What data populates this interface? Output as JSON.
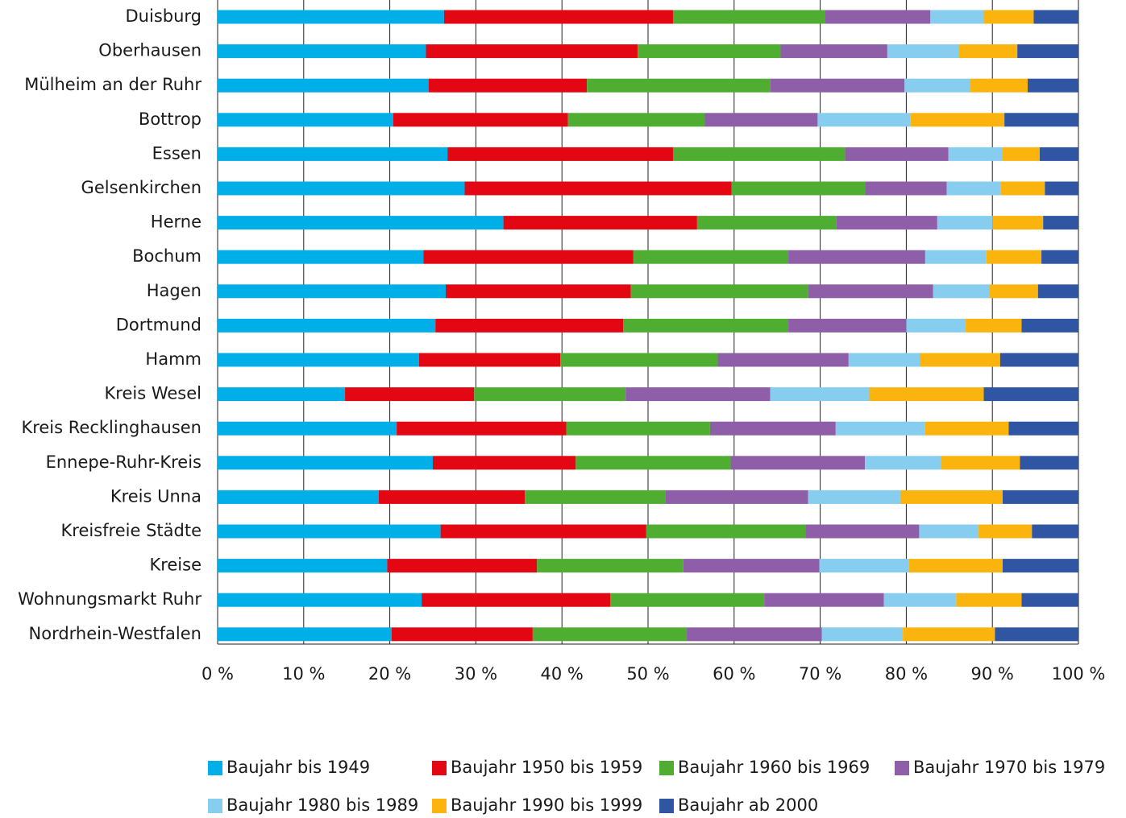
{
  "chart_data": {
    "type": "stacked_bar_horizontal",
    "categories": [
      "Duisburg",
      "Oberhausen",
      "Mülheim an der Ruhr",
      "Bottrop",
      "Essen",
      "Gelsenkirchen",
      "Herne",
      "Bochum",
      "Hagen",
      "Dortmund",
      "Hamm",
      "Kreis Wesel",
      "Kreis Recklinghausen",
      "Ennepe-Ruhr-Kreis",
      "Kreis Unna",
      "Kreisfreie Städte",
      "Kreise",
      "Wohnungsmarkt Ruhr",
      "Nordrhein-Westfalen"
    ],
    "series": [
      {
        "name": "Baujahr bis 1949",
        "color": "#00aee8",
        "values": [
          26.3,
          24.2,
          24.5,
          20.4,
          26.7,
          28.7,
          33.2,
          23.9,
          26.5,
          25.3,
          23.4,
          14.8,
          20.8,
          25.0,
          18.7,
          25.9,
          19.7,
          23.7,
          20.2
        ]
      },
      {
        "name": "Baujahr 1950 bis 1959",
        "color": "#e30613",
        "values": [
          26.6,
          24.6,
          18.4,
          20.3,
          26.2,
          31.0,
          22.5,
          24.4,
          21.5,
          21.8,
          16.4,
          15.0,
          19.7,
          16.6,
          17.0,
          23.9,
          17.4,
          21.9,
          16.4
        ]
      },
      {
        "name": "Baujahr 1960 bis 1969",
        "color": "#4fad32",
        "values": [
          17.7,
          16.6,
          21.3,
          15.9,
          20.0,
          15.5,
          16.2,
          18.0,
          20.6,
          19.2,
          18.3,
          17.6,
          16.7,
          18.0,
          16.3,
          18.5,
          17.0,
          17.9,
          17.9
        ]
      },
      {
        "name": "Baujahr 1970 bis 1979",
        "color": "#8e5ea8",
        "values": [
          12.2,
          12.4,
          15.6,
          13.1,
          12.0,
          9.5,
          11.7,
          15.9,
          14.5,
          13.7,
          15.2,
          16.8,
          14.6,
          15.6,
          16.6,
          13.2,
          15.8,
          13.9,
          15.7
        ]
      },
      {
        "name": "Baujahr 1980 bis 1989",
        "color": "#87cdf0",
        "values": [
          6.2,
          8.3,
          7.6,
          10.8,
          6.3,
          6.3,
          6.4,
          7.1,
          6.6,
          6.9,
          8.3,
          11.5,
          10.4,
          8.8,
          10.7,
          6.9,
          10.4,
          8.4,
          9.4
        ]
      },
      {
        "name": "Baujahr 1990 bis 1999",
        "color": "#fbb40d",
        "values": [
          5.8,
          6.8,
          6.7,
          10.9,
          4.3,
          5.1,
          5.9,
          6.4,
          5.6,
          6.5,
          9.3,
          13.3,
          9.7,
          9.2,
          11.9,
          6.2,
          10.9,
          7.6,
          10.7
        ]
      },
      {
        "name": "Baujahr ab 2000",
        "color": "#2f55a3",
        "values": [
          5.2,
          7.1,
          5.9,
          8.6,
          4.5,
          3.9,
          4.1,
          4.3,
          4.7,
          6.6,
          9.1,
          11.0,
          8.1,
          6.8,
          8.8,
          5.4,
          8.8,
          6.6,
          9.7
        ]
      }
    ],
    "xlim": [
      0,
      100
    ],
    "xticks": [
      {
        "value": 0,
        "label": "0 %"
      },
      {
        "value": 10,
        "label": "10 %"
      },
      {
        "value": 20,
        "label": "20 %"
      },
      {
        "value": 30,
        "label": "30 %"
      },
      {
        "value": 40,
        "label": "40 %"
      },
      {
        "value": 50,
        "label": "50 %"
      },
      {
        "value": 60,
        "label": "60 %"
      },
      {
        "value": 70,
        "label": "70 %"
      },
      {
        "value": 80,
        "label": "80 %"
      },
      {
        "value": 90,
        "label": "90 %"
      },
      {
        "value": 100,
        "label": "100 %"
      }
    ],
    "grid": true,
    "legend": "bottom"
  }
}
